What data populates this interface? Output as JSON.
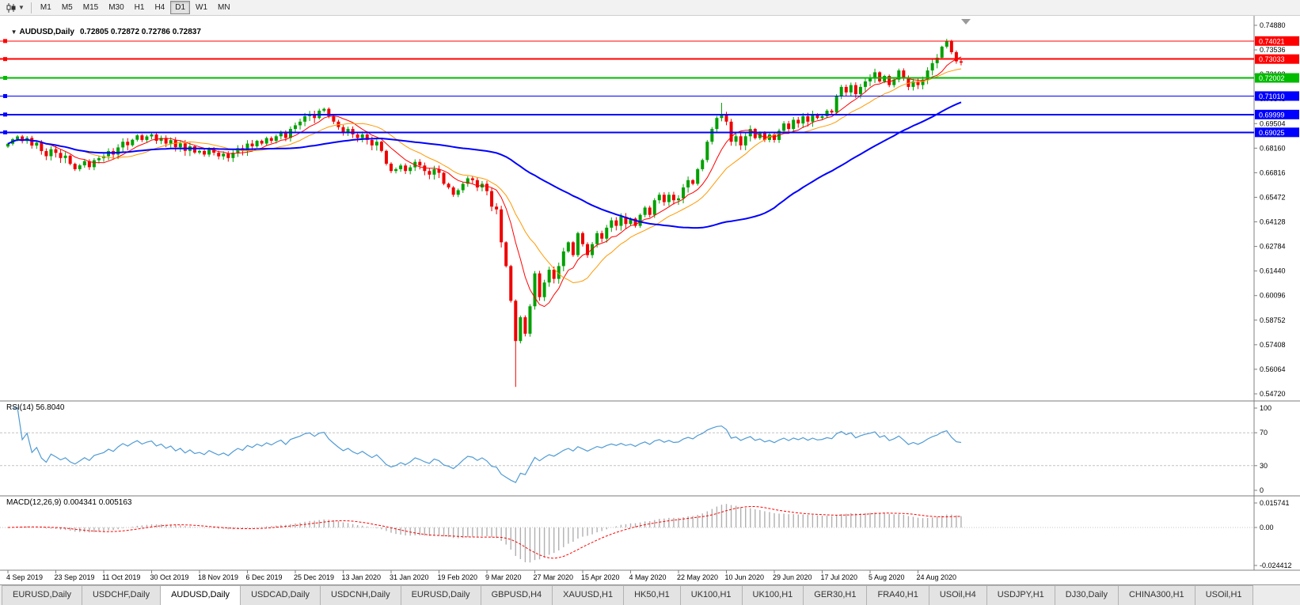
{
  "toolbar": {
    "timeframes": [
      "M1",
      "M5",
      "M15",
      "M30",
      "H1",
      "H4",
      "D1",
      "W1",
      "MN"
    ],
    "active_timeframe": "D1"
  },
  "main_chart": {
    "title_symbol": "AUDUSD,Daily",
    "title_ohlc": "0.72805 0.72872 0.72786 0.72837",
    "price_axis_labels": [
      "0.74880",
      "0.73536",
      "0.72192",
      "0.70848",
      "0.69504",
      "0.68160",
      "0.66816",
      "0.65472",
      "0.64128",
      "0.62784",
      "0.61440",
      "0.60096",
      "0.58752",
      "0.57408",
      "0.56064",
      "0.54720"
    ],
    "hlines": [
      {
        "price": 0.74021,
        "label": "0.74021",
        "color": "#ff0000",
        "width": 1
      },
      {
        "price": 0.73033,
        "label": "0.73033",
        "color": "#ff0000",
        "width": 2
      },
      {
        "price": 0.72002,
        "label": "0.72002",
        "color": "#00bb00",
        "width": 2
      },
      {
        "price": 0.7101,
        "label": "0.71010",
        "color": "#0000ff",
        "width": 1
      },
      {
        "price": 0.69999,
        "label": "0.69999",
        "color": "#0000ff",
        "width": 2
      },
      {
        "price": 0.69025,
        "label": "0.69025",
        "color": "#0000ff",
        "width": 2
      }
    ]
  },
  "rsi": {
    "header": "RSI(14) 56.8040",
    "axis_labels": [
      "100",
      "70",
      "30",
      "0"
    ],
    "upper_level": 70,
    "lower_level": 30
  },
  "macd": {
    "header": "MACD(12,26,9) 0.004341 0.005163",
    "axis_labels": [
      "0.015741",
      "0.00",
      "-0.024412"
    ]
  },
  "date_axis": {
    "candle_stride": 10,
    "labels": [
      "4 Sep 2019",
      "23 Sep 2019",
      "11 Oct 2019",
      "30 Oct 2019",
      "18 Nov 2019",
      "6 Dec 2019",
      "25 Dec 2019",
      "13 Jan 2020",
      "31 Jan 2020",
      "19 Feb 2020",
      "9 Mar 2020",
      "27 Mar 2020",
      "15 Apr 2020",
      "4 May 2020",
      "22 May 2020",
      "10 Jun 2020",
      "29 Jun 2020",
      "17 Jul 2020",
      "5 Aug 2020",
      "24 Aug 2020"
    ]
  },
  "tabs": {
    "active_index": 2,
    "items": [
      "EURUSD,Daily",
      "USDCHF,Daily",
      "AUDUSD,Daily",
      "USDCAD,Daily",
      "USDCNH,Daily",
      "EURUSD,Daily",
      "GBPUSD,H4",
      "XAUUSD,H1",
      "HK50,H1",
      "UK100,H1",
      "UK100,H1",
      "GER30,H1",
      "FRA40,H1",
      "USOil,H4",
      "USDJPY,H1",
      "DJ30,Daily",
      "CHINA300,H1",
      "USOil,H1"
    ],
    "note": ""
  },
  "chart_data": {
    "type": "candlestick+indicators",
    "symbol": "AUDUSD",
    "timeframe": "Daily",
    "current_bar": {
      "open": 0.72805,
      "high": 0.72872,
      "low": 0.72786,
      "close": 0.72837
    },
    "y_range": {
      "min": 0.5472,
      "max": 0.7488,
      "grid_step": 0.01344
    },
    "rsi_current": 56.804,
    "macd_current": {
      "macd": 0.004341,
      "signal": 0.005163
    },
    "macd_range": {
      "min": -0.024412,
      "max": 0.015741
    },
    "rsi_period": 14,
    "macd_params": {
      "fast": 12,
      "slow": 26,
      "signal": 9
    },
    "ma": [
      {
        "period": 8,
        "color": "#ff0000",
        "width": 1
      },
      {
        "period": 16,
        "color": "#ff9900",
        "width": 1
      },
      {
        "period": 55,
        "color": "#0000ff",
        "width": 2
      }
    ],
    "colors": {
      "up": "#00a000",
      "down": "#ee0000",
      "rsi": "#4f9bd5",
      "macd_hist": "#b0b0b0",
      "macd_signal": "#ff0000"
    },
    "closes": [
      0.684,
      0.6865,
      0.688,
      0.6855,
      0.6872,
      0.683,
      0.6846,
      0.68,
      0.6772,
      0.681,
      0.679,
      0.6762,
      0.6775,
      0.673,
      0.6701,
      0.6722,
      0.6745,
      0.6712,
      0.675,
      0.6761,
      0.6772,
      0.68,
      0.6781,
      0.682,
      0.6851,
      0.6832,
      0.6862,
      0.6886,
      0.6861,
      0.688,
      0.6891,
      0.6856,
      0.6872,
      0.6841,
      0.686,
      0.6821,
      0.6842,
      0.6801,
      0.6826,
      0.6792,
      0.6801,
      0.6781,
      0.6812,
      0.6791,
      0.6771,
      0.6786,
      0.6762,
      0.6791,
      0.6816,
      0.6801,
      0.6841,
      0.6826,
      0.6856,
      0.6841,
      0.6871,
      0.6856,
      0.6881,
      0.6901,
      0.6872,
      0.6921,
      0.6941,
      0.6961,
      0.6991,
      0.7001,
      0.6981,
      0.7021,
      0.7031,
      0.6991,
      0.6961,
      0.6931,
      0.6901,
      0.6921,
      0.6891,
      0.6871,
      0.6891,
      0.6861,
      0.6831,
      0.6851,
      0.6801,
      0.6731,
      0.6691,
      0.6701,
      0.6721,
      0.6691,
      0.6711,
      0.6741,
      0.6721,
      0.6691,
      0.6671,
      0.6701,
      0.6681,
      0.6621,
      0.6601,
      0.6561,
      0.6586,
      0.6621,
      0.6651,
      0.6641,
      0.6601,
      0.6621,
      0.6581,
      0.6496,
      0.6481,
      0.6301,
      0.6171,
      0.5981,
      0.5761,
      0.5891,
      0.5801,
      0.5951,
      0.6131,
      0.6001,
      0.6081,
      0.6151,
      0.6101,
      0.6171,
      0.6251,
      0.6301,
      0.6231,
      0.6351,
      0.6291,
      0.6231,
      0.6291,
      0.6351,
      0.6321,
      0.6381,
      0.6421,
      0.6391,
      0.6441,
      0.6401,
      0.6431,
      0.6391,
      0.6451,
      0.6491,
      0.6451,
      0.6531,
      0.6561,
      0.6521,
      0.6561,
      0.6531,
      0.6541,
      0.6601,
      0.6641,
      0.6621,
      0.6701,
      0.6751,
      0.6851,
      0.6921,
      0.6981,
      0.7001,
      0.6961,
      0.6851,
      0.6881,
      0.6831,
      0.6881,
      0.6921,
      0.6871,
      0.6901,
      0.6861,
      0.6891,
      0.6861,
      0.6911,
      0.6951,
      0.6921,
      0.6971,
      0.6951,
      0.6991,
      0.6961,
      0.7001,
      0.6981,
      0.6991,
      0.7021,
      0.7011,
      0.7101,
      0.7151,
      0.7121,
      0.7161,
      0.7111,
      0.7151,
      0.7181,
      0.7201,
      0.7231,
      0.7181,
      0.7211,
      0.7161,
      0.7191,
      0.7241,
      0.7201,
      0.7151,
      0.7181,
      0.7161,
      0.7191,
      0.7241,
      0.7281,
      0.7311,
      0.7371,
      0.7401,
      0.7341,
      0.7291,
      0.72837
    ],
    "wick_overrides": {
      "65": {
        "high": 0.7032
      },
      "106": {
        "low": 0.551
      },
      "149": {
        "high": 0.7064
      },
      "196": {
        "high": 0.7414
      }
    }
  }
}
